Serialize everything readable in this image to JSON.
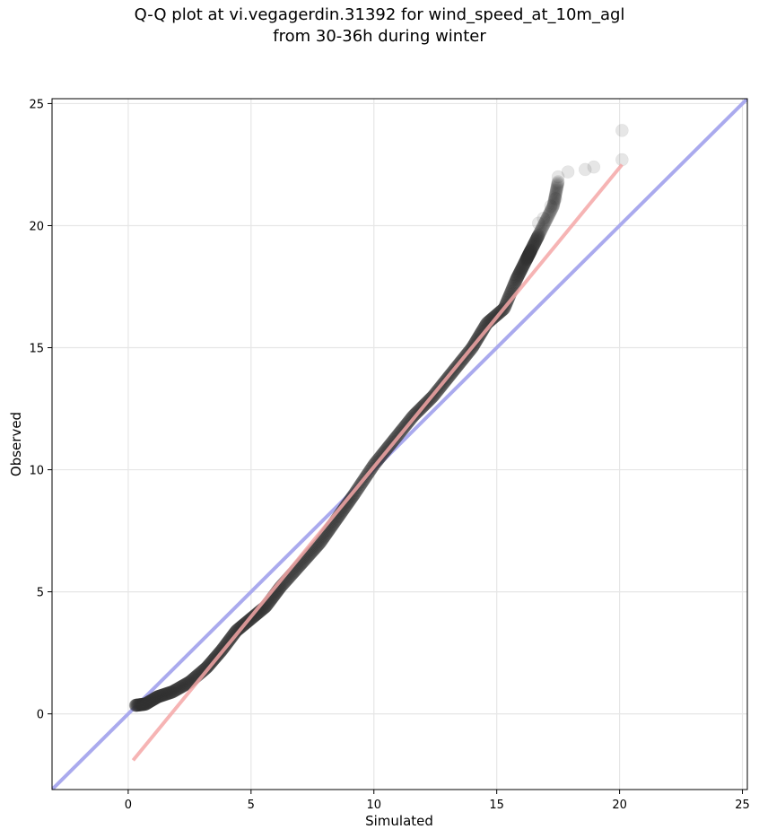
{
  "chart_data": {
    "type": "scatter",
    "title_line1": "Q-Q plot at vi.vegagerdin.31392 for wind_speed_at_10m_agl",
    "title_line2": "from 30-36h during winter",
    "xlabel": "Simulated",
    "ylabel": "Observed",
    "xlim": [
      -3.1,
      25.2
    ],
    "ylim": [
      -3.1,
      25.2
    ],
    "xticks": [
      0,
      5,
      10,
      15,
      20,
      25
    ],
    "yticks": [
      0,
      5,
      10,
      15,
      20,
      25
    ],
    "grid": true,
    "reference_line": {
      "name": "1:1",
      "color": "#aaaaee",
      "from": [
        -3.1,
        -3.1
      ],
      "to": [
        25.2,
        25.2
      ]
    },
    "fit_line": {
      "color": "#f4a7a7",
      "from": [
        0.2,
        -1.9
      ],
      "to": [
        20.1,
        22.5
      ]
    },
    "point_color": "#333333",
    "quantile_knots": [
      [
        0.3,
        0.35
      ],
      [
        0.7,
        0.4
      ],
      [
        1.2,
        0.7
      ],
      [
        1.8,
        0.9
      ],
      [
        2.5,
        1.3
      ],
      [
        3.2,
        1.9
      ],
      [
        3.8,
        2.6
      ],
      [
        4.4,
        3.4
      ],
      [
        5.0,
        3.9
      ],
      [
        5.6,
        4.4
      ],
      [
        6.2,
        5.2
      ],
      [
        7.0,
        6.1
      ],
      [
        7.8,
        7.0
      ],
      [
        8.5,
        8.0
      ],
      [
        9.2,
        9.0
      ],
      [
        10.0,
        10.2
      ],
      [
        10.8,
        11.2
      ],
      [
        11.6,
        12.2
      ],
      [
        12.4,
        13.0
      ],
      [
        13.2,
        14.0
      ],
      [
        14.0,
        15.0
      ],
      [
        14.6,
        16.0
      ],
      [
        15.3,
        16.6
      ],
      [
        15.8,
        17.8
      ],
      [
        16.2,
        18.6
      ],
      [
        16.4,
        19.0
      ],
      [
        16.8,
        19.8
      ],
      [
        17.3,
        20.8
      ],
      [
        17.5,
        21.8
      ]
    ],
    "tail_points": [
      [
        17.9,
        22.2
      ],
      [
        18.6,
        22.3
      ],
      [
        18.95,
        22.4
      ],
      [
        20.1,
        22.7
      ],
      [
        20.1,
        23.9
      ],
      [
        17.5,
        22.0
      ],
      [
        17.4,
        21.1
      ],
      [
        17.2,
        20.8
      ],
      [
        16.9,
        20.3
      ],
      [
        16.7,
        20.1
      ]
    ],
    "n_points": 620
  }
}
